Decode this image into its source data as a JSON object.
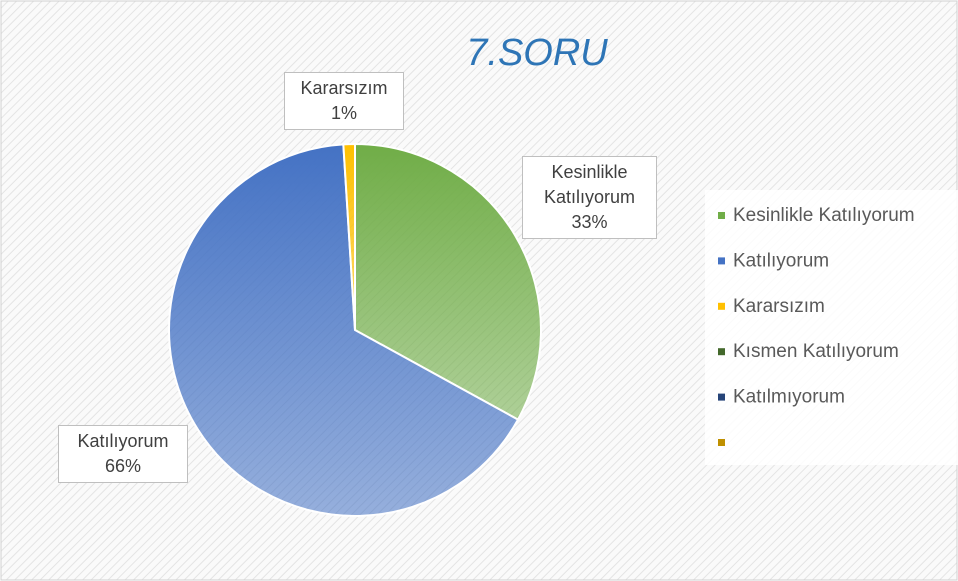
{
  "chart_data": {
    "type": "pie",
    "title": "7.SORU",
    "categories": [
      "Kesinlikle Katılıyorum",
      "Katılıyorum",
      "Kararsızım",
      "Kısmen Katılıyorum",
      "Katılmıyorum",
      null
    ],
    "values": [
      33,
      66,
      1,
      0,
      0,
      0
    ],
    "value_labels": [
      "33%",
      "66%",
      "1%",
      null,
      null,
      null
    ],
    "colors": [
      "#70ad47",
      "#4472c4",
      "#ffc000",
      "#43682b",
      "#264478",
      "#bf9000"
    ],
    "legend": "right"
  }
}
